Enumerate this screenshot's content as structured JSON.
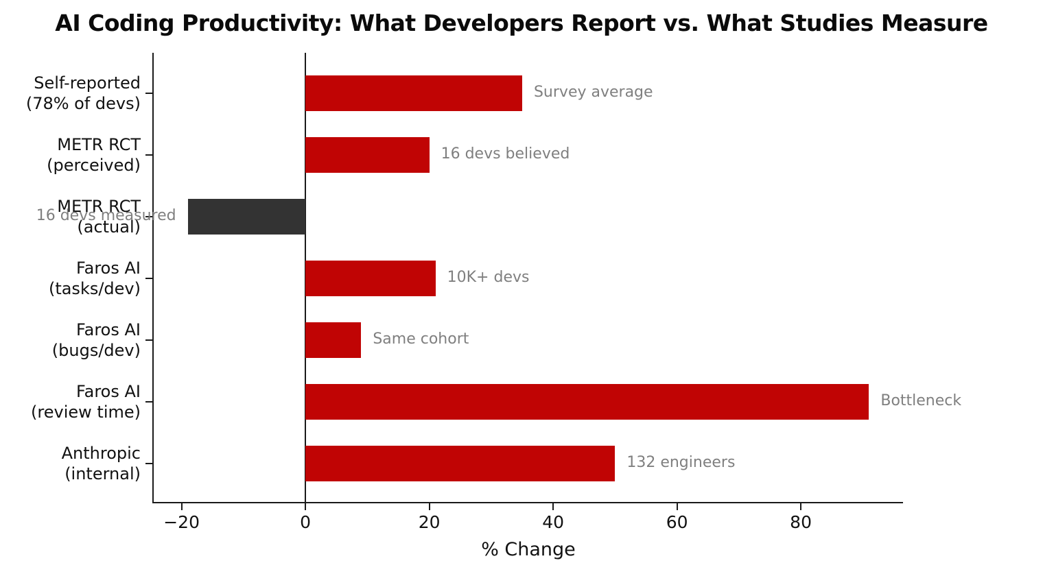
{
  "title": "AI Coding Productivity: What Developers Report vs. What Studies Measure",
  "chart_data": {
    "type": "bar",
    "orientation": "horizontal",
    "title": "AI Coding Productivity: What Developers Report vs. What Studies Measure",
    "xlabel": "% Change",
    "xlim": [
      -24.5,
      96.5
    ],
    "xticks": [
      -20,
      0,
      20,
      40,
      60,
      80
    ],
    "grid": false,
    "zero_line": true,
    "legend": "none",
    "categories": [
      "Self-reported\n(78% of devs)",
      "METR RCT\n(perceived)",
      "METR RCT\n(actual)",
      "Faros AI\n(tasks/dev)",
      "Faros AI\n(bugs/dev)",
      "Faros AI\n(review time)",
      "Anthropic\n(internal)"
    ],
    "values": [
      35,
      20,
      -19,
      21,
      9,
      91,
      50
    ],
    "bar_colors": [
      "#c00404",
      "#c00404",
      "#333333",
      "#c00404",
      "#c00404",
      "#c00404",
      "#c00404"
    ],
    "annotations": [
      "Survey average",
      "16 devs believed",
      "16 devs measured",
      "10K+ devs",
      "Same cohort",
      "Bottleneck",
      "132 engineers"
    ],
    "annotation_color": "#7f7f7f",
    "axis_color": "#1a1a1a",
    "background_color": "#ffffff"
  }
}
